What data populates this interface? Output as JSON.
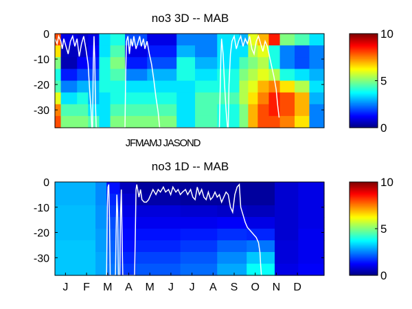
{
  "chart_data": [
    {
      "type": "heatmap",
      "title": "no3 3D   -- MAB",
      "xlabel": "",
      "ylabel": "",
      "x_tick_labels": [],
      "x_label_string": "JFMAMJ JASOND",
      "y_ticks": [
        0,
        -10,
        -20,
        -30
      ],
      "ylim": [
        -37,
        0
      ],
      "xlim_days": [
        0,
        365
      ],
      "colormap": "jet",
      "clim": [
        0,
        10
      ],
      "colorbar_ticks": [
        0,
        5,
        10
      ],
      "grid": false,
      "depth_profiles": [
        {
          "day_range": [
            0,
            8
          ],
          "values": [
            8.0,
            6.5,
            5.0,
            4.0,
            4.5,
            6.0,
            7.5,
            8.0
          ]
        },
        {
          "day_range": [
            8,
            30
          ],
          "values": [
            1.0,
            0.6,
            0.5,
            1.5,
            2.5,
            3.5,
            4.5,
            5.0
          ]
        },
        {
          "day_range": [
            30,
            45
          ],
          "values": [
            0.8,
            0.7,
            1.2,
            2.0,
            3.0,
            4.0,
            4.5,
            5.0
          ]
        },
        {
          "day_range": [
            45,
            60
          ],
          "values": [
            1.0,
            1.2,
            1.5,
            2.0,
            3.0,
            3.0,
            3.5,
            4.5
          ]
        },
        {
          "day_range": [
            60,
            75
          ],
          "values": [
            3.5,
            3.5,
            4.0,
            4.0,
            4.0,
            3.5,
            3.5,
            3.5
          ]
        },
        {
          "day_range": [
            75,
            95
          ],
          "values": [
            4.0,
            4.5,
            5.0,
            4.5,
            4.0,
            4.0,
            4.5,
            5.0
          ]
        },
        {
          "day_range": [
            95,
            125
          ],
          "values": [
            2.0,
            1.0,
            1.5,
            2.5,
            3.5,
            4.0,
            4.5,
            5.0
          ]
        },
        {
          "day_range": [
            125,
            165
          ],
          "values": [
            1.0,
            1.5,
            2.0,
            3.0,
            3.5,
            4.0,
            4.5,
            5.0
          ]
        },
        {
          "day_range": [
            165,
            190
          ],
          "values": [
            2.5,
            3.0,
            4.0,
            4.0,
            3.5,
            3.5,
            3.5,
            3.5
          ]
        },
        {
          "day_range": [
            190,
            220
          ],
          "values": [
            2.5,
            2.5,
            3.0,
            3.5,
            4.0,
            4.5,
            4.5,
            4.5
          ]
        },
        {
          "day_range": [
            220,
            250
          ],
          "values": [
            3.5,
            3.5,
            3.5,
            4.0,
            4.0,
            4.5,
            4.0,
            4.0
          ]
        },
        {
          "day_range": [
            250,
            262
          ],
          "values": [
            3.0,
            3.5,
            4.5,
            5.0,
            5.5,
            5.5,
            5.0,
            5.0
          ]
        },
        {
          "day_range": [
            262,
            275
          ],
          "values": [
            6.0,
            5.5,
            5.0,
            5.5,
            6.0,
            6.5,
            7.0,
            7.0
          ]
        },
        {
          "day_range": [
            275,
            290
          ],
          "values": [
            7.0,
            6.0,
            5.5,
            6.0,
            7.0,
            7.5,
            8.0,
            8.0
          ]
        },
        {
          "day_range": [
            290,
            305
          ],
          "values": [
            8.5,
            4.0,
            4.0,
            5.5,
            7.5,
            8.5,
            8.5,
            8.0
          ]
        },
        {
          "day_range": [
            305,
            325
          ],
          "values": [
            5.0,
            2.5,
            2.5,
            4.0,
            6.5,
            8.0,
            8.0,
            7.5
          ]
        },
        {
          "day_range": [
            325,
            345
          ],
          "values": [
            4.5,
            2.0,
            2.0,
            3.5,
            5.5,
            7.0,
            7.0,
            6.5
          ]
        },
        {
          "day_range": [
            345,
            365
          ],
          "values": [
            3.5,
            2.5,
            2.5,
            3.0,
            3.5,
            3.0,
            2.5,
            2.5
          ]
        }
      ],
      "white_line": [
        [
          0,
          -2
        ],
        [
          3,
          -4
        ],
        [
          5,
          -1
        ],
        [
          8,
          -3
        ],
        [
          10,
          -6
        ],
        [
          12,
          -2
        ],
        [
          15,
          -5
        ],
        [
          18,
          -8
        ],
        [
          21,
          -3
        ],
        [
          24,
          -1
        ],
        [
          27,
          -5
        ],
        [
          30,
          -2
        ],
        [
          33,
          -9
        ],
        [
          36,
          -4
        ],
        [
          39,
          -1
        ],
        [
          42,
          -6
        ],
        [
          45,
          -12
        ],
        [
          47,
          -22
        ],
        [
          49,
          -30
        ],
        [
          50,
          -37
        ],
        [
          51,
          -37
        ],
        [
          52,
          -12
        ],
        [
          53,
          -1
        ],
        [
          54,
          -10
        ],
        [
          55,
          -28
        ],
        [
          56,
          -37
        ],
        [
          95,
          -37
        ],
        [
          96,
          -15
        ],
        [
          97,
          -3
        ],
        [
          99,
          -1
        ],
        [
          101,
          -8
        ],
        [
          103,
          -2
        ],
        [
          105,
          -5
        ],
        [
          107,
          -1
        ],
        [
          110,
          -6
        ],
        [
          112,
          -4
        ],
        [
          115,
          -1
        ],
        [
          117,
          -5
        ],
        [
          120,
          -2
        ],
        [
          122,
          -6
        ],
        [
          125,
          -3
        ],
        [
          128,
          -8
        ],
        [
          131,
          -12
        ],
        [
          134,
          -18
        ],
        [
          137,
          -25
        ],
        [
          140,
          -31
        ],
        [
          142,
          -37
        ],
        [
          223,
          -37
        ],
        [
          225,
          -10
        ],
        [
          226,
          -2
        ],
        [
          228,
          -8
        ],
        [
          230,
          -20
        ],
        [
          232,
          -30
        ],
        [
          234,
          -37
        ],
        [
          235,
          -37
        ],
        [
          236,
          -20
        ],
        [
          238,
          -8
        ],
        [
          240,
          -3
        ],
        [
          243,
          -1
        ],
        [
          246,
          -6
        ],
        [
          249,
          -3
        ],
        [
          252,
          -1
        ],
        [
          255,
          -5
        ],
        [
          258,
          -2
        ],
        [
          261,
          -4
        ],
        [
          264,
          -1
        ],
        [
          267,
          -6
        ],
        [
          270,
          -8
        ],
        [
          273,
          -3
        ],
        [
          276,
          -1
        ],
        [
          279,
          -4
        ],
        [
          282,
          -7
        ],
        [
          285,
          -3
        ],
        [
          288,
          -5
        ],
        [
          291,
          -9
        ],
        [
          294,
          -13
        ],
        [
          297,
          -17
        ],
        [
          300,
          -22
        ],
        [
          302,
          -28
        ],
        [
          304,
          -33
        ]
      ]
    },
    {
      "type": "heatmap",
      "title": "no3 1D   -- MAB",
      "xlabel": "",
      "ylabel": "",
      "x_tick_labels": [
        "J",
        "F",
        "M",
        "A",
        "M",
        "J",
        "J",
        "A",
        "S",
        "O",
        "N",
        "D"
      ],
      "y_ticks": [
        0,
        -10,
        -20,
        -30
      ],
      "ylim": [
        -37,
        0
      ],
      "xlim_days": [
        0,
        365
      ],
      "colormap": "jet",
      "clim": [
        0,
        10
      ],
      "colorbar_ticks": [
        0,
        5,
        10
      ],
      "grid": false,
      "depth_profiles": [
        {
          "day_range": [
            0,
            55
          ],
          "values": [
            3.0,
            3.0,
            3.1,
            3.1,
            3.1,
            3.2,
            3.2,
            3.2
          ]
        },
        {
          "day_range": [
            55,
            70
          ],
          "values": [
            2.6,
            2.6,
            2.7,
            2.7,
            2.8,
            2.8,
            2.9,
            2.9
          ]
        },
        {
          "day_range": [
            70,
            88
          ],
          "values": [
            1.4,
            1.6,
            1.8,
            2.0,
            2.1,
            2.2,
            2.3,
            2.4
          ]
        },
        {
          "day_range": [
            88,
            110
          ],
          "values": [
            0.6,
            0.8,
            1.0,
            1.2,
            1.3,
            1.4,
            1.6,
            1.8
          ]
        },
        {
          "day_range": [
            110,
            170
          ],
          "values": [
            0.3,
            0.4,
            0.9,
            1.1,
            1.4,
            1.6,
            1.9,
            2.1
          ]
        },
        {
          "day_range": [
            170,
            220
          ],
          "values": [
            0.3,
            0.3,
            0.8,
            1.1,
            1.5,
            1.8,
            2.1,
            2.3
          ]
        },
        {
          "day_range": [
            220,
            260
          ],
          "values": [
            0.3,
            0.3,
            0.7,
            1.2,
            1.7,
            2.2,
            2.6,
            2.9
          ]
        },
        {
          "day_range": [
            260,
            298
          ],
          "values": [
            0.3,
            0.3,
            0.6,
            1.0,
            1.6,
            2.4,
            3.2,
            3.8
          ]
        },
        {
          "day_range": [
            298,
            330
          ],
          "values": [
            0.8,
            0.8,
            0.8,
            0.8,
            0.8,
            0.9,
            0.9,
            1.0
          ]
        },
        {
          "day_range": [
            330,
            365
          ],
          "values": [
            1.0,
            1.0,
            1.0,
            1.0,
            1.1,
            1.1,
            1.1,
            1.2
          ]
        }
      ],
      "white_line": [
        [
          70,
          -37
        ],
        [
          71,
          -10
        ],
        [
          72,
          -2
        ],
        [
          73,
          -1
        ],
        [
          74,
          -15
        ],
        [
          75,
          -37
        ],
        [
          82,
          -37
        ],
        [
          83,
          -20
        ],
        [
          84,
          -5
        ],
        [
          85,
          -12
        ],
        [
          86,
          -37
        ],
        [
          88,
          -37
        ],
        [
          89,
          -12
        ],
        [
          90,
          -3
        ],
        [
          91,
          -20
        ],
        [
          92,
          -37
        ],
        [
          108,
          -37
        ],
        [
          109,
          -20
        ],
        [
          110,
          -3
        ],
        [
          111,
          -1
        ],
        [
          114,
          -6
        ],
        [
          116,
          -3
        ],
        [
          118,
          -7
        ],
        [
          121,
          -8
        ],
        [
          124,
          -8
        ],
        [
          127,
          -7
        ],
        [
          130,
          -5
        ],
        [
          133,
          -3
        ],
        [
          137,
          -5
        ],
        [
          140,
          -3
        ],
        [
          143,
          -4
        ],
        [
          147,
          -2
        ],
        [
          150,
          -4
        ],
        [
          154,
          -3
        ],
        [
          157,
          -5
        ],
        [
          160,
          -2
        ],
        [
          164,
          -4
        ],
        [
          167,
          -3
        ],
        [
          170,
          -5
        ],
        [
          173,
          -4
        ],
        [
          177,
          -3
        ],
        [
          180,
          -5
        ],
        [
          184,
          -3
        ],
        [
          187,
          -6
        ],
        [
          190,
          -7
        ],
        [
          193,
          -2
        ],
        [
          196,
          -5
        ],
        [
          199,
          -3
        ],
        [
          202,
          -6
        ],
        [
          205,
          -7
        ],
        [
          208,
          -4
        ],
        [
          211,
          -7
        ],
        [
          214,
          -6
        ],
        [
          217,
          -4
        ],
        [
          220,
          -6
        ],
        [
          223,
          -5
        ],
        [
          226,
          -8
        ],
        [
          229,
          -6
        ],
        [
          232,
          -4
        ],
        [
          235,
          -5
        ],
        [
          238,
          -10
        ],
        [
          241,
          -12
        ],
        [
          244,
          -5
        ],
        [
          247,
          -2
        ],
        [
          250,
          -1
        ],
        [
          252,
          -10
        ],
        [
          255,
          -13
        ],
        [
          258,
          -16
        ],
        [
          261,
          -18
        ],
        [
          264,
          -19
        ],
        [
          267,
          -20
        ],
        [
          270,
          -21
        ],
        [
          273,
          -22
        ],
        [
          276,
          -24
        ],
        [
          278,
          -28
        ],
        [
          279,
          -33
        ],
        [
          280,
          -37
        ]
      ]
    }
  ]
}
